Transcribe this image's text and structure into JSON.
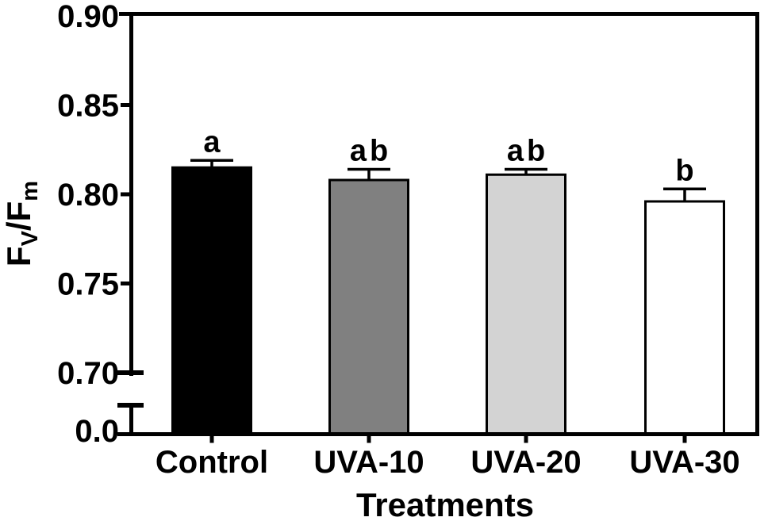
{
  "figure": {
    "background_color": "#ffffff",
    "frame_color": "#000000"
  },
  "chart_data": {
    "type": "bar",
    "title": "",
    "xlabel": "Treatments",
    "ylabel": "Fv/Fm",
    "ylabel_parts": [
      {
        "text": "F",
        "sub": false
      },
      {
        "text": "V",
        "sub": true
      },
      {
        "text": "/F",
        "sub": false
      },
      {
        "text": "m",
        "sub": true
      }
    ],
    "categories": [
      "Control",
      "UVA-10",
      "UVA-20",
      "UVA-30"
    ],
    "values": [
      0.815,
      0.808,
      0.811,
      0.796
    ],
    "errors_plus": [
      0.004,
      0.006,
      0.003,
      0.007
    ],
    "sig_letters": [
      "a",
      "ab",
      "ab",
      "b"
    ],
    "bar_fill_colors": [
      "#000000",
      "#808080",
      "#d3d3d3",
      "#ffffff"
    ],
    "bar_edge_color": "#000000",
    "y_axis": {
      "upper_range": [
        0.7,
        0.9
      ],
      "upper_ticks": [
        0.9,
        0.85,
        0.8,
        0.75,
        0.7
      ],
      "upper_tick_labels": [
        "0.90",
        "0.85",
        "0.80",
        "0.75",
        "0.70"
      ],
      "axis_break": true,
      "baseline_tick_label": "0.0"
    },
    "frame": "full-box",
    "grid": false,
    "legend": "none"
  }
}
